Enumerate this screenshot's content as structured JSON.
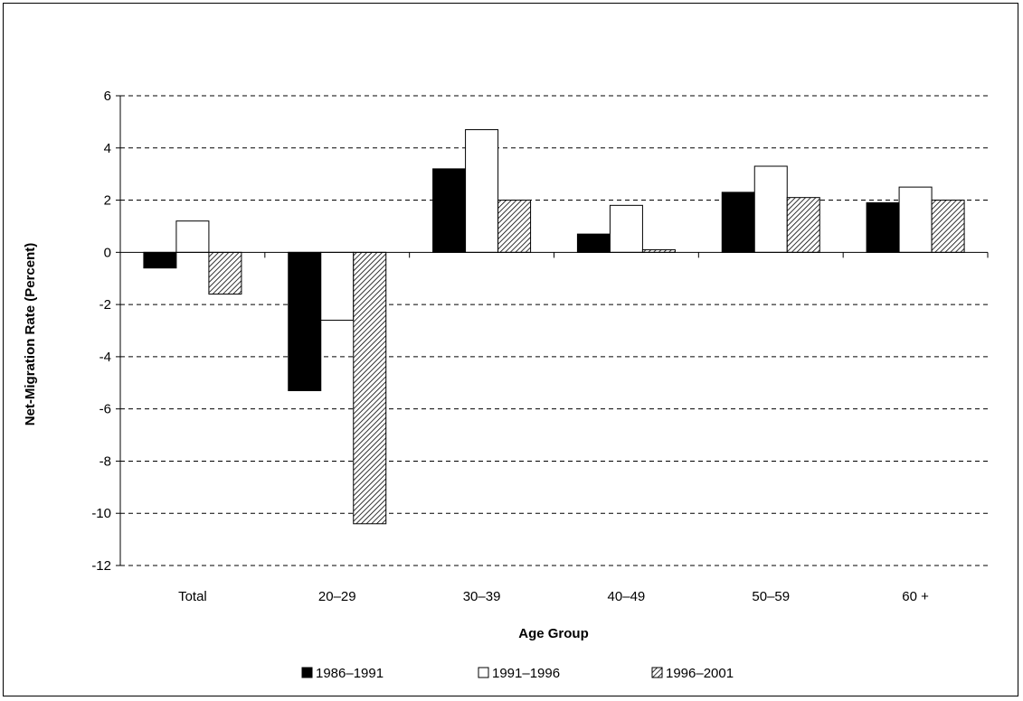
{
  "chart_data": {
    "type": "bar",
    "title": "",
    "xlabel": "Age Group",
    "ylabel": "Net-Migration Rate (Percent)",
    "ylim": [
      -12,
      6
    ],
    "yticks": [
      6,
      4,
      2,
      0,
      -2,
      -4,
      -6,
      -8,
      -10,
      -12
    ],
    "ytick_labels": [
      "6",
      "4",
      "2",
      "0",
      "-2",
      "-4",
      "-6",
      "-8",
      "-10",
      "-12"
    ],
    "grid": "horizontal dashed",
    "legend_position": "bottom",
    "categories": [
      "Total",
      "20–29",
      "30–39",
      "40–49",
      "50–59",
      "60 +"
    ],
    "series": [
      {
        "name": "1986–1991",
        "color": "#000000",
        "pattern": "solid",
        "values": [
          -0.6,
          -5.3,
          3.2,
          0.7,
          2.3,
          1.9
        ]
      },
      {
        "name": "1991–1996",
        "color": "#ffffff",
        "pattern": "hollow",
        "values": [
          1.2,
          -2.6,
          4.7,
          1.8,
          3.3,
          2.5
        ]
      },
      {
        "name": "1996–2001",
        "color": "#bfbfbf",
        "pattern": "diagonal-hatch",
        "values": [
          -1.6,
          -10.4,
          2.0,
          0.1,
          2.1,
          2.0
        ]
      }
    ]
  }
}
